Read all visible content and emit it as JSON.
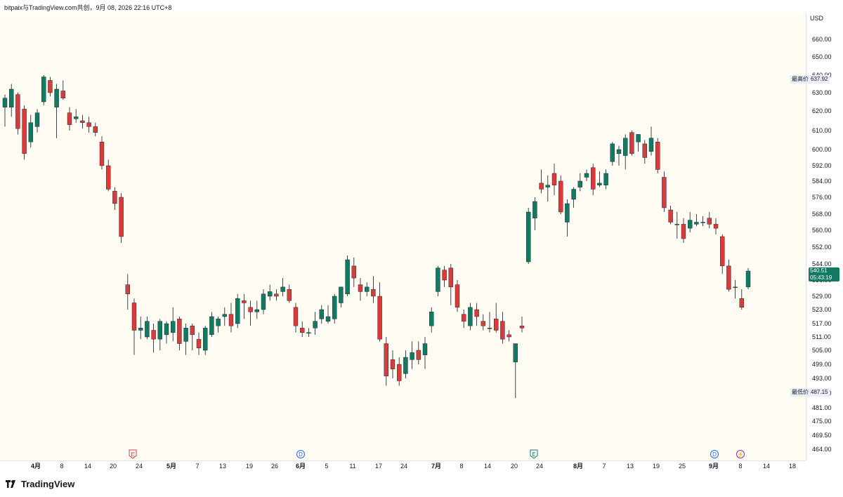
{
  "header": {
    "text": "bitpaix与TradingView.com共创，9月 08, 2026 22:16 UTC+8"
  },
  "currency": "USD",
  "high": {
    "label": "最高价",
    "value": "637.92"
  },
  "low": {
    "label": "最低价",
    "value": "487.15"
  },
  "last": {
    "price": "540.51",
    "countdown": "05:43:19"
  },
  "footer": {
    "brand": "TradingView"
  },
  "colors": {
    "up": "#127a63",
    "down": "#d73b3b",
    "plot_bg": "#fffcf4"
  },
  "chart_data": {
    "type": "candlestick",
    "y_ticks": [
      "660.00",
      "650.00",
      "640.00",
      "630.00",
      "620.00",
      "610.00",
      "600.00",
      "592.00",
      "584.00",
      "576.00",
      "568.00",
      "560.00",
      "552.00",
      "544.00",
      "536.00",
      "529.00",
      "523.00",
      "517.00",
      "511.00",
      "505.00",
      "499.00",
      "493.00",
      "487.00",
      "481.00",
      "475.00",
      "469.50",
      "464.00"
    ],
    "x_ticks": [
      {
        "label": "4月",
        "bold": true
      },
      {
        "label": "8"
      },
      {
        "label": "14"
      },
      {
        "label": "20"
      },
      {
        "label": "24"
      },
      {
        "label": "5月",
        "bold": true
      },
      {
        "label": "7"
      },
      {
        "label": "13"
      },
      {
        "label": "19"
      },
      {
        "label": "26"
      },
      {
        "label": "6月",
        "bold": true
      },
      {
        "label": "5"
      },
      {
        "label": "11"
      },
      {
        "label": "17"
      },
      {
        "label": "24"
      },
      {
        "label": "7月",
        "bold": true
      },
      {
        "label": "8"
      },
      {
        "label": "14"
      },
      {
        "label": "20"
      },
      {
        "label": "24"
      },
      {
        "label": "8月",
        "bold": true
      },
      {
        "label": "7"
      },
      {
        "label": "13"
      },
      {
        "label": "19"
      },
      {
        "label": "25"
      },
      {
        "label": "9月",
        "bold": true
      },
      {
        "label": "8"
      },
      {
        "label": "14"
      },
      {
        "label": "18"
      }
    ],
    "events": [
      {
        "label": "E",
        "kind": "earnings-down"
      },
      {
        "label": "D",
        "kind": "dividend"
      },
      {
        "label": "E",
        "kind": "earnings-up"
      },
      {
        "label": "D",
        "kind": "dividend"
      },
      {
        "label": "⚡",
        "kind": "split"
      }
    ],
    "candles": [
      {
        "o": 622,
        "h": 629,
        "l": 612,
        "c": 627
      },
      {
        "o": 622,
        "h": 635,
        "l": 617,
        "c": 632
      },
      {
        "o": 629,
        "h": 630,
        "l": 608,
        "c": 611
      },
      {
        "o": 621,
        "h": 623,
        "l": 595,
        "c": 598
      },
      {
        "o": 604,
        "h": 618,
        "l": 601,
        "c": 614
      },
      {
        "o": 612,
        "h": 621,
        "l": 609,
        "c": 619
      },
      {
        "o": 625,
        "h": 640,
        "l": 623,
        "c": 639
      },
      {
        "o": 637,
        "h": 639,
        "l": 628,
        "c": 630
      },
      {
        "o": 622,
        "h": 635,
        "l": 606,
        "c": 632
      },
      {
        "o": 631,
        "h": 637,
        "l": 626,
        "c": 627
      },
      {
        "o": 619,
        "h": 622,
        "l": 610,
        "c": 613
      },
      {
        "o": 616,
        "h": 621,
        "l": 614,
        "c": 617
      },
      {
        "o": 615,
        "h": 618,
        "l": 611,
        "c": 614
      },
      {
        "o": 614,
        "h": 617,
        "l": 609,
        "c": 612
      },
      {
        "o": 612,
        "h": 614,
        "l": 607,
        "c": 609
      },
      {
        "o": 604,
        "h": 607,
        "l": 590,
        "c": 592
      },
      {
        "o": 592,
        "h": 595,
        "l": 579,
        "c": 580
      },
      {
        "o": 579,
        "h": 581,
        "l": 570,
        "c": 573
      },
      {
        "o": 576,
        "h": 578,
        "l": 554,
        "c": 557
      },
      {
        "o": 534,
        "h": 539,
        "l": 523,
        "c": 530
      },
      {
        "o": 526,
        "h": 528,
        "l": 503,
        "c": 514
      },
      {
        "o": 514,
        "h": 520,
        "l": 510,
        "c": 515
      },
      {
        "o": 511,
        "h": 520,
        "l": 510,
        "c": 518
      },
      {
        "o": 514,
        "h": 517,
        "l": 504,
        "c": 510
      },
      {
        "o": 510,
        "h": 519,
        "l": 505,
        "c": 518
      },
      {
        "o": 512,
        "h": 518,
        "l": 508,
        "c": 517
      },
      {
        "o": 513,
        "h": 524,
        "l": 509,
        "c": 518
      },
      {
        "o": 519,
        "h": 520,
        "l": 505,
        "c": 508
      },
      {
        "o": 509,
        "h": 517,
        "l": 503,
        "c": 515
      },
      {
        "o": 516,
        "h": 517,
        "l": 505,
        "c": 512
      },
      {
        "o": 510,
        "h": 513,
        "l": 503,
        "c": 506
      },
      {
        "o": 505,
        "h": 516,
        "l": 503,
        "c": 515
      },
      {
        "o": 512,
        "h": 522,
        "l": 511,
        "c": 520
      },
      {
        "o": 516,
        "h": 520,
        "l": 513,
        "c": 519
      },
      {
        "o": 520,
        "h": 524,
        "l": 516,
        "c": 521
      },
      {
        "o": 521,
        "h": 526,
        "l": 513,
        "c": 516
      },
      {
        "o": 517,
        "h": 530,
        "l": 515,
        "c": 528
      },
      {
        "o": 527,
        "h": 530,
        "l": 519,
        "c": 526
      },
      {
        "o": 524,
        "h": 527,
        "l": 516,
        "c": 522
      },
      {
        "o": 522,
        "h": 527,
        "l": 519,
        "c": 523
      },
      {
        "o": 523,
        "h": 532,
        "l": 521,
        "c": 530
      },
      {
        "o": 529,
        "h": 534,
        "l": 527,
        "c": 531
      },
      {
        "o": 530,
        "h": 532,
        "l": 527,
        "c": 529
      },
      {
        "o": 531,
        "h": 537,
        "l": 529,
        "c": 533
      },
      {
        "o": 532,
        "h": 534,
        "l": 526,
        "c": 527
      },
      {
        "o": 524,
        "h": 526,
        "l": 513,
        "c": 516
      },
      {
        "o": 515,
        "h": 518,
        "l": 511,
        "c": 513
      },
      {
        "o": 513,
        "h": 515,
        "l": 511,
        "c": 513
      },
      {
        "o": 515,
        "h": 522,
        "l": 512,
        "c": 518
      },
      {
        "o": 519,
        "h": 525,
        "l": 517,
        "c": 523
      },
      {
        "o": 518,
        "h": 525,
        "l": 517,
        "c": 520
      },
      {
        "o": 519,
        "h": 530,
        "l": 517,
        "c": 529
      },
      {
        "o": 526,
        "h": 533,
        "l": 524,
        "c": 533
      },
      {
        "o": 530,
        "h": 548,
        "l": 529,
        "c": 546
      },
      {
        "o": 543,
        "h": 547,
        "l": 533,
        "c": 537
      },
      {
        "o": 534,
        "h": 537,
        "l": 527,
        "c": 531
      },
      {
        "o": 531,
        "h": 535,
        "l": 529,
        "c": 533
      },
      {
        "o": 532,
        "h": 538,
        "l": 526,
        "c": 529
      },
      {
        "o": 529,
        "h": 535,
        "l": 509,
        "c": 510
      },
      {
        "o": 508,
        "h": 511,
        "l": 490,
        "c": 494
      },
      {
        "o": 501,
        "h": 505,
        "l": 493,
        "c": 497
      },
      {
        "o": 499,
        "h": 502,
        "l": 490,
        "c": 492
      },
      {
        "o": 495,
        "h": 505,
        "l": 493,
        "c": 502
      },
      {
        "o": 501,
        "h": 509,
        "l": 497,
        "c": 504
      },
      {
        "o": 505,
        "h": 509,
        "l": 499,
        "c": 501
      },
      {
        "o": 503,
        "h": 511,
        "l": 497,
        "c": 508
      },
      {
        "o": 516,
        "h": 524,
        "l": 513,
        "c": 522
      },
      {
        "o": 531,
        "h": 543,
        "l": 529,
        "c": 542
      },
      {
        "o": 541,
        "h": 543,
        "l": 533,
        "c": 536
      },
      {
        "o": 542,
        "h": 544,
        "l": 525,
        "c": 533
      },
      {
        "o": 534,
        "h": 536,
        "l": 522,
        "c": 524
      },
      {
        "o": 521,
        "h": 523,
        "l": 515,
        "c": 518
      },
      {
        "o": 516,
        "h": 526,
        "l": 514,
        "c": 524
      },
      {
        "o": 523,
        "h": 526,
        "l": 516,
        "c": 520
      },
      {
        "o": 518,
        "h": 521,
        "l": 514,
        "c": 516
      },
      {
        "o": 515,
        "h": 522,
        "l": 513,
        "c": 515
      },
      {
        "o": 519,
        "h": 526,
        "l": 513,
        "c": 514
      },
      {
        "o": 518,
        "h": 522,
        "l": 508,
        "c": 510
      },
      {
        "o": 512,
        "h": 514,
        "l": 509,
        "c": 511
      },
      {
        "o": 500,
        "h": 508,
        "l": 485,
        "c": 508
      },
      {
        "o": 516,
        "h": 520,
        "l": 513,
        "c": 515
      },
      {
        "o": 545,
        "h": 571,
        "l": 544,
        "c": 569
      },
      {
        "o": 566,
        "h": 576,
        "l": 560,
        "c": 574
      },
      {
        "o": 583,
        "h": 590,
        "l": 578,
        "c": 580
      },
      {
        "o": 581,
        "h": 587,
        "l": 574,
        "c": 582
      },
      {
        "o": 588,
        "h": 593,
        "l": 577,
        "c": 582
      },
      {
        "o": 584,
        "h": 587,
        "l": 568,
        "c": 569
      },
      {
        "o": 564,
        "h": 575,
        "l": 557,
        "c": 573
      },
      {
        "o": 575,
        "h": 581,
        "l": 571,
        "c": 580
      },
      {
        "o": 581,
        "h": 588,
        "l": 579,
        "c": 584
      },
      {
        "o": 586,
        "h": 590,
        "l": 584,
        "c": 588
      },
      {
        "o": 591,
        "h": 593,
        "l": 577,
        "c": 580
      },
      {
        "o": 582,
        "h": 589,
        "l": 581,
        "c": 583
      },
      {
        "o": 582,
        "h": 590,
        "l": 580,
        "c": 588
      },
      {
        "o": 594,
        "h": 604,
        "l": 592,
        "c": 603
      },
      {
        "o": 598,
        "h": 602,
        "l": 592,
        "c": 600
      },
      {
        "o": 597,
        "h": 608,
        "l": 590,
        "c": 606
      },
      {
        "o": 609,
        "h": 610,
        "l": 597,
        "c": 598
      },
      {
        "o": 604,
        "h": 608,
        "l": 599,
        "c": 608
      },
      {
        "o": 603,
        "h": 605,
        "l": 593,
        "c": 596
      },
      {
        "o": 599,
        "h": 612,
        "l": 597,
        "c": 606
      },
      {
        "o": 604,
        "h": 606,
        "l": 588,
        "c": 590
      },
      {
        "o": 586,
        "h": 589,
        "l": 569,
        "c": 571
      },
      {
        "o": 570,
        "h": 572,
        "l": 563,
        "c": 564
      },
      {
        "o": 563,
        "h": 569,
        "l": 556,
        "c": 563
      },
      {
        "o": 563,
        "h": 566,
        "l": 554,
        "c": 556
      },
      {
        "o": 561,
        "h": 569,
        "l": 559,
        "c": 565
      },
      {
        "o": 563,
        "h": 568,
        "l": 562,
        "c": 564
      },
      {
        "o": 564,
        "h": 567,
        "l": 562,
        "c": 564
      },
      {
        "o": 566,
        "h": 569,
        "l": 561,
        "c": 563
      },
      {
        "o": 563,
        "h": 566,
        "l": 558,
        "c": 561
      },
      {
        "o": 557,
        "h": 558,
        "l": 539,
        "c": 543
      },
      {
        "o": 543,
        "h": 546,
        "l": 531,
        "c": 532
      },
      {
        "o": 533,
        "h": 536,
        "l": 528,
        "c": 533
      },
      {
        "o": 528,
        "h": 532,
        "l": 523,
        "c": 524
      },
      {
        "o": 533,
        "h": 542,
        "l": 532,
        "c": 540.51
      }
    ]
  }
}
